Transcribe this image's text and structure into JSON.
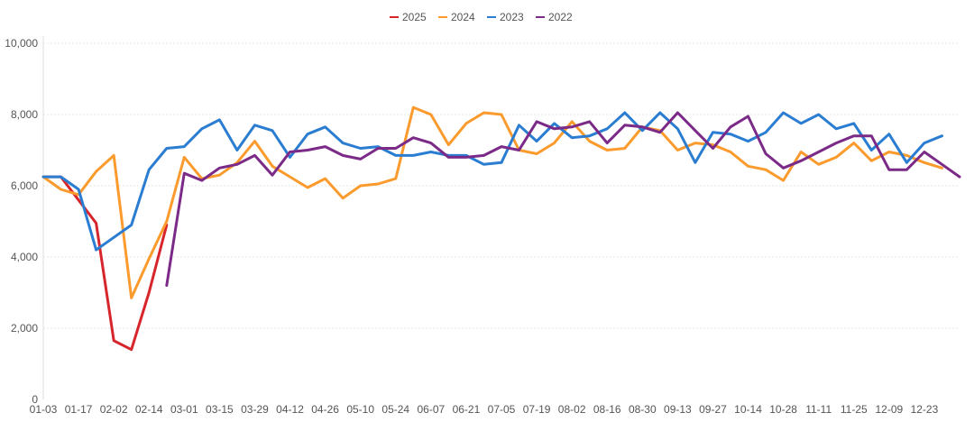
{
  "chart_data": {
    "type": "line",
    "title": "",
    "xlabel": "",
    "ylabel": "",
    "ylim": [
      0,
      10000
    ],
    "y_ticks": [
      "0",
      "2,000",
      "4,000",
      "6,000",
      "8,000",
      "10,000"
    ],
    "x_tick_labels": [
      "01-03",
      "01-17",
      "02-02",
      "02-14",
      "03-01",
      "03-15",
      "03-29",
      "04-12",
      "04-26",
      "05-10",
      "05-24",
      "06-07",
      "06-21",
      "07-05",
      "07-19",
      "08-02",
      "08-16",
      "08-30",
      "09-13",
      "09-27",
      "10-14",
      "10-28",
      "11-11",
      "11-25",
      "12-09",
      "12-23"
    ],
    "grid": "horizontal dashed",
    "legend_position": "top-center",
    "x_count": 53,
    "series": [
      {
        "name": "2025",
        "color": "#d7262b",
        "values": [
          6250,
          6250,
          5600,
          4950,
          1650,
          1400,
          3000,
          4900
        ]
      },
      {
        "name": "2024",
        "color": "#fb9a2d",
        "values": [
          6250,
          5900,
          5750,
          6400,
          6850,
          2850,
          3950,
          5000,
          6800,
          6200,
          6300,
          6650,
          7250,
          6550,
          6250,
          5950,
          6200,
          5650,
          6000,
          6050,
          6200,
          8200,
          8000,
          7150,
          7750,
          8050,
          8000,
          7000,
          6900,
          7200,
          7800,
          7250,
          7000,
          7050,
          7650,
          7550,
          7000,
          7200,
          7150,
          6950,
          6550,
          6450,
          6150,
          6950,
          6600,
          6800,
          7200,
          6700,
          6950,
          6850,
          6650,
          6500
        ]
      },
      {
        "name": "2023",
        "color": "#2b7dd1",
        "values": [
          6250,
          6250,
          5900,
          4200,
          4550,
          4900,
          6450,
          7050,
          7100,
          7600,
          7850,
          7000,
          7700,
          7550,
          6800,
          7450,
          7650,
          7200,
          7050,
          7100,
          6850,
          6850,
          6950,
          6850,
          6850,
          6600,
          6650,
          7700,
          7250,
          7750,
          7350,
          7400,
          7600,
          8050,
          7550,
          8050,
          7600,
          6650,
          7500,
          7450,
          7250,
          7500,
          8050,
          7750,
          8000,
          7600,
          7750,
          7000,
          7450,
          6650,
          7200,
          7400
        ]
      },
      {
        "name": "2022",
        "color": "#7b2a88",
        "values": [
          null,
          null,
          null,
          null,
          null,
          null,
          null,
          3200,
          6350,
          6150,
          6500,
          6600,
          6850,
          6300,
          6950,
          7000,
          7100,
          6850,
          6750,
          7050,
          7050,
          7350,
          7200,
          6800,
          6800,
          6850,
          7100,
          7000,
          7800,
          7600,
          7650,
          7800,
          7200,
          7700,
          7650,
          7500,
          8050,
          7550,
          7050,
          7650,
          7950,
          6900,
          6500,
          6700,
          6950,
          7200,
          7400,
          7400,
          6450,
          6450,
          6950,
          6600,
          6250
        ]
      }
    ]
  }
}
